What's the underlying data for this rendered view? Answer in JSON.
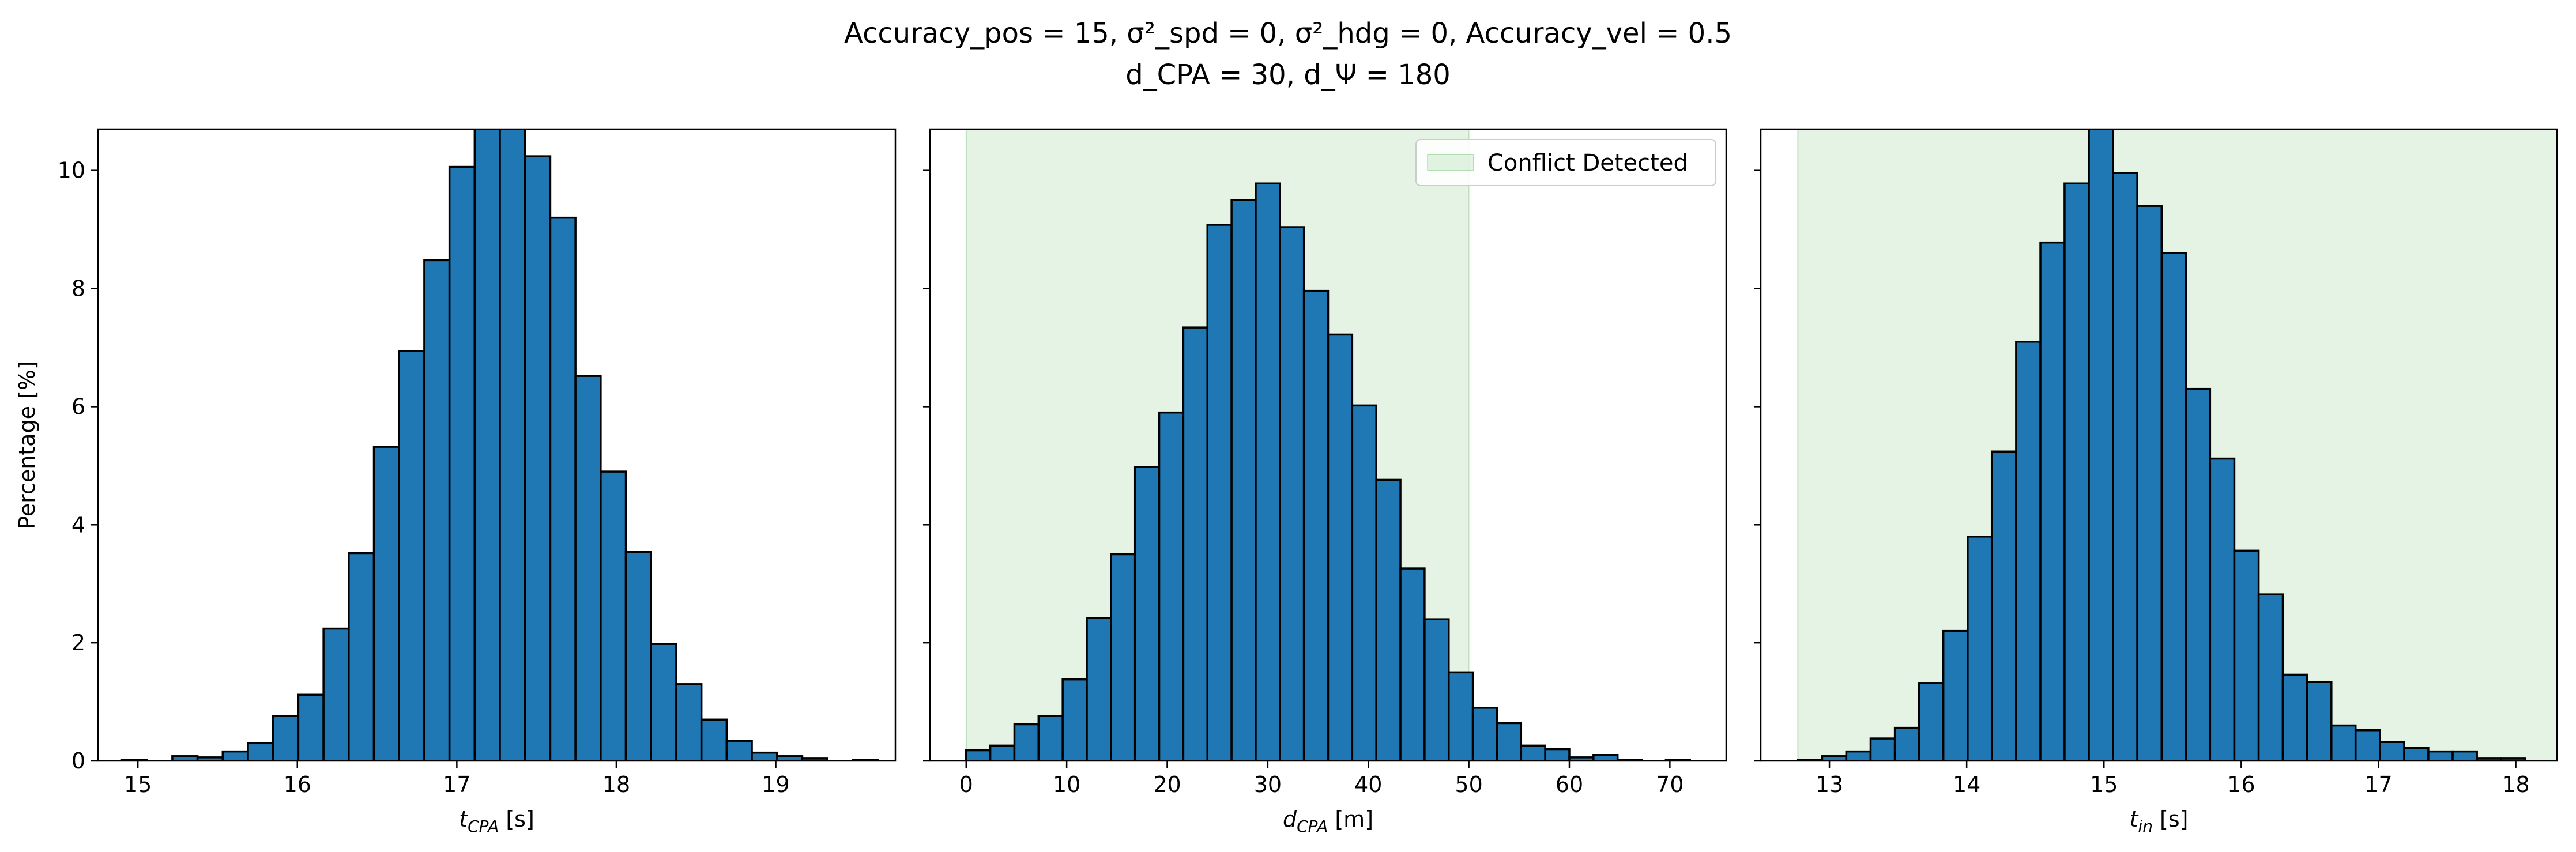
{
  "figure": {
    "title_line1": "Accuracy_pos = 15, σ²_spd = 0, σ²_hdg = 0, Accuracy_vel = 0.5",
    "title_line2": "d_CPA = 30, d_Ψ = 180"
  },
  "chart_data": [
    {
      "type": "bar",
      "name": "tcpa",
      "xlabel": "t_CPA [s]",
      "ylabel": "Percentage [%]",
      "xlim": [
        14.75,
        19.75
      ],
      "ylim": [
        0,
        10.7
      ],
      "xticks": [
        15,
        16,
        17,
        18,
        19
      ],
      "yticks": [
        0,
        2,
        4,
        6,
        8,
        10
      ],
      "bin_edges": [
        14.9,
        15.058,
        15.216,
        15.374,
        15.532,
        15.69,
        15.848,
        16.006,
        16.164,
        16.322,
        16.48,
        16.638,
        16.796,
        16.954,
        17.112,
        17.27,
        17.428,
        17.586,
        17.744,
        17.902,
        18.06,
        18.218,
        18.376,
        18.534,
        18.692,
        18.85,
        19.008,
        19.166,
        19.324,
        19.482,
        19.64
      ],
      "values": [
        0.02,
        0.0,
        0.08,
        0.06,
        0.16,
        0.3,
        0.76,
        1.12,
        2.24,
        3.52,
        5.32,
        6.94,
        8.48,
        10.06,
        10.88,
        10.8,
        10.24,
        9.2,
        6.52,
        4.9,
        3.54,
        1.98,
        1.3,
        0.7,
        0.34,
        0.14,
        0.08,
        0.04,
        0.0,
        0.02
      ]
    },
    {
      "type": "bar",
      "name": "dcpa",
      "xlabel": "d_CPA [m]",
      "ylabel": "",
      "xlim": [
        -3.6,
        75.6
      ],
      "ylim": [
        0,
        10.7
      ],
      "xticks": [
        0,
        10,
        20,
        30,
        40,
        50,
        60,
        70
      ],
      "yticks": [
        0,
        2,
        4,
        6,
        8,
        10
      ],
      "bin_edges": [
        0.0,
        2.4,
        4.8,
        7.2,
        9.6,
        12.0,
        14.4,
        16.8,
        19.2,
        21.6,
        24.0,
        26.4,
        28.8,
        31.2,
        33.6,
        36.0,
        38.4,
        40.8,
        43.2,
        45.6,
        48.0,
        50.4,
        52.8,
        55.2,
        57.6,
        60.0,
        62.4,
        64.8,
        67.2,
        69.6,
        72.0
      ],
      "values": [
        0.18,
        0.26,
        0.62,
        0.76,
        1.38,
        2.42,
        3.5,
        4.98,
        5.9,
        7.34,
        9.08,
        9.5,
        9.78,
        9.04,
        7.96,
        7.22,
        6.02,
        4.76,
        3.26,
        2.4,
        1.5,
        0.9,
        0.64,
        0.26,
        0.2,
        0.06,
        0.1,
        0.02,
        0.0,
        0.02
      ],
      "shaded_region": {
        "x0": 0,
        "x1": 50,
        "label": "Conflict Detected",
        "color": "#2ca02c"
      },
      "legend": {
        "placement": "top-right",
        "label": "Conflict Detected"
      }
    },
    {
      "type": "bar",
      "name": "tin",
      "xlabel": "t_in [s]",
      "ylabel": "",
      "xlim": [
        12.5,
        18.3
      ],
      "ylim": [
        0,
        10.7
      ],
      "xticks": [
        13,
        14,
        15,
        16,
        17,
        18
      ],
      "yticks": [
        0,
        2,
        4,
        6,
        8,
        10
      ],
      "bin_edges": [
        12.77,
        12.947,
        13.123,
        13.3,
        13.477,
        13.653,
        13.83,
        14.007,
        14.183,
        14.36,
        14.537,
        14.713,
        14.89,
        15.067,
        15.243,
        15.42,
        15.597,
        15.773,
        15.95,
        16.127,
        16.303,
        16.48,
        16.657,
        16.833,
        17.01,
        17.187,
        17.363,
        17.54,
        17.717,
        17.893,
        18.07
      ],
      "values": [
        0.02,
        0.08,
        0.16,
        0.38,
        0.56,
        1.32,
        2.2,
        3.8,
        5.24,
        7.1,
        8.78,
        9.78,
        10.78,
        9.96,
        9.4,
        8.6,
        6.3,
        5.12,
        3.56,
        2.82,
        1.46,
        1.34,
        0.6,
        0.52,
        0.32,
        0.22,
        0.16,
        0.16,
        0.04,
        0.04
      ],
      "shaded_region": {
        "x0": 12.77,
        "x1": 18.3,
        "color": "#2ca02c"
      }
    }
  ]
}
